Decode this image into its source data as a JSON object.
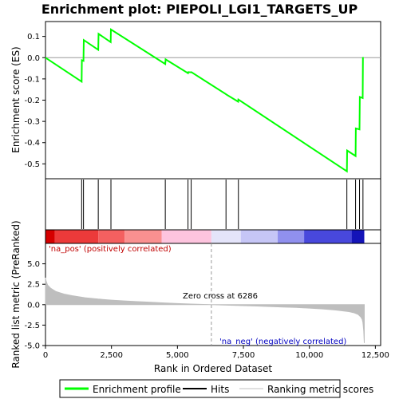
{
  "chart_data": {
    "type": "line",
    "title": "Enrichment plot: PIEPOLI_LGI1_TARGETS_UP",
    "enrichment_panel": {
      "ylabel": "Enrichment score (ES)",
      "ylim": [
        -0.57,
        0.17
      ],
      "yticks": [
        0.1,
        0.0,
        -0.1,
        -0.2,
        -0.3,
        -0.4,
        -0.5
      ],
      "ytick_labels": [
        "0.1",
        "0.0",
        "-0.1",
        "-0.2",
        "-0.3",
        "-0.4",
        "-0.5"
      ],
      "series": [
        {
          "name": "Enrichment profile",
          "color": "#00ff00",
          "x": [
            0,
            1370,
            1380,
            1440,
            1450,
            2000,
            2010,
            2470,
            2480,
            4540,
            4550,
            5400,
            5410,
            5520,
            5530,
            6840,
            6850,
            7300,
            7310,
            11420,
            11430,
            11750,
            11760,
            11900,
            11910,
            12020,
            12030
          ],
          "y": [
            0.0,
            -0.113,
            -0.012,
            -0.015,
            0.083,
            0.037,
            0.112,
            0.073,
            0.133,
            -0.03,
            -0.008,
            -0.073,
            -0.068,
            -0.069,
            -0.068,
            -0.172,
            -0.173,
            -0.207,
            -0.197,
            -0.535,
            -0.437,
            -0.463,
            -0.333,
            -0.338,
            -0.185,
            -0.19,
            0.003
          ]
        }
      ]
    },
    "hits": {
      "name": "Hits",
      "positions": [
        1370,
        1440,
        2000,
        2480,
        4540,
        5400,
        5520,
        6840,
        7310,
        11420,
        11750,
        11900,
        12030
      ]
    },
    "ranking_panel": {
      "name": "Ranking metric scores",
      "ylabel": "Ranked list metric (PreRanked)",
      "xlabel": "Rank in Ordered Dataset",
      "xlim": [
        0,
        12700
      ],
      "ylim": [
        -5.0,
        7.5
      ],
      "xticks": [
        0,
        2500,
        5000,
        7500,
        10000,
        12500
      ],
      "xtick_labels": [
        "0",
        "2,500",
        "5,000",
        "7,500",
        "10,000",
        "12,500"
      ],
      "yticks": [
        5.0,
        2.5,
        0.0,
        -2.5,
        -5.0
      ],
      "ytick_labels": [
        "5.0",
        "2.5",
        "0.0",
        "-2.5",
        "-5.0"
      ],
      "profile_x": [
        0,
        20,
        80,
        200,
        400,
        700,
        1000,
        1500,
        2000,
        2500,
        3000,
        3500,
        4000,
        4500,
        5000,
        5500,
        6000,
        6286,
        7000,
        7500,
        8000,
        8500,
        9000,
        9500,
        10000,
        10500,
        11000,
        11500,
        11700,
        11850,
        11950,
        12000,
        12030,
        12060,
        12080
      ],
      "profile_y": [
        3.3,
        2.9,
        2.4,
        2.0,
        1.6,
        1.3,
        1.1,
        0.85,
        0.68,
        0.56,
        0.46,
        0.37,
        0.29,
        0.21,
        0.14,
        0.08,
        0.03,
        0.0,
        -0.07,
        -0.12,
        -0.17,
        -0.22,
        -0.28,
        -0.34,
        -0.42,
        -0.52,
        -0.65,
        -0.85,
        -1.0,
        -1.2,
        -1.5,
        -1.8,
        -2.2,
        -3.2,
        -4.7
      ],
      "zero_cross_label": "Zero cross at 6286",
      "zero_cross": 6286,
      "pos_label": "'na_pos' (positively correlated)",
      "neg_label": "'na_neg' (negatively correlated)"
    },
    "colorbar_segments": [
      {
        "from": 0,
        "to": 350,
        "color": "#d50000"
      },
      {
        "from": 350,
        "to": 2000,
        "color": "#ec3a3a"
      },
      {
        "from": 2000,
        "to": 3000,
        "color": "#f46060"
      },
      {
        "from": 3000,
        "to": 4400,
        "color": "#fa9090"
      },
      {
        "from": 4400,
        "to": 6286,
        "color": "#fdc4de"
      },
      {
        "from": 6286,
        "to": 7400,
        "color": "#e4e4fa"
      },
      {
        "from": 7400,
        "to": 8800,
        "color": "#c6c6f6"
      },
      {
        "from": 8800,
        "to": 9800,
        "color": "#9090ee"
      },
      {
        "from": 9800,
        "to": 11600,
        "color": "#4848dc"
      },
      {
        "from": 11600,
        "to": 12080,
        "color": "#1414b8"
      }
    ]
  },
  "legend": {
    "items": [
      {
        "label": "Enrichment profile",
        "color": "#00ff00"
      },
      {
        "label": "Hits",
        "color": "#000000"
      },
      {
        "label": "Ranking metric scores",
        "color": "#c0c0c0"
      }
    ]
  },
  "colors": {
    "profile": "#00ff00",
    "ranking_fill": "#bebebe",
    "pos_text": "#c00000",
    "neg_text": "#0000c0",
    "zero_line": "#9a9a9a"
  }
}
